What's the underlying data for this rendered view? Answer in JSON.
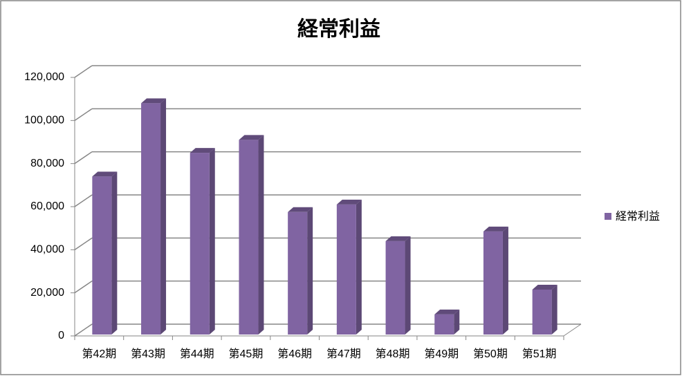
{
  "chart_data": {
    "type": "bar3d",
    "title": "経常利益",
    "categories": [
      "第42期",
      "第43期",
      "第44期",
      "第45期",
      "第46期",
      "第47期",
      "第48期",
      "第49期",
      "第50期",
      "第51期"
    ],
    "series": [
      {
        "name": "経常利益",
        "color": "#8064a2",
        "values": [
          74000,
          108000,
          85000,
          91000,
          57500,
          61000,
          44000,
          10000,
          48500,
          21500
        ]
      }
    ],
    "ylim": [
      0,
      120000
    ],
    "yticks": [
      0,
      {
        "value": 20000,
        "label": "20,000"
      },
      {
        "value": 40000,
        "label": "40,000"
      },
      {
        "value": 60000,
        "label": "60,000"
      },
      {
        "value": 80000,
        "label": "80,000"
      },
      {
        "value": 100000,
        "label": "100,000"
      },
      {
        "value": 120000,
        "label": "120,000"
      }
    ],
    "grid": true,
    "legend": "right"
  }
}
